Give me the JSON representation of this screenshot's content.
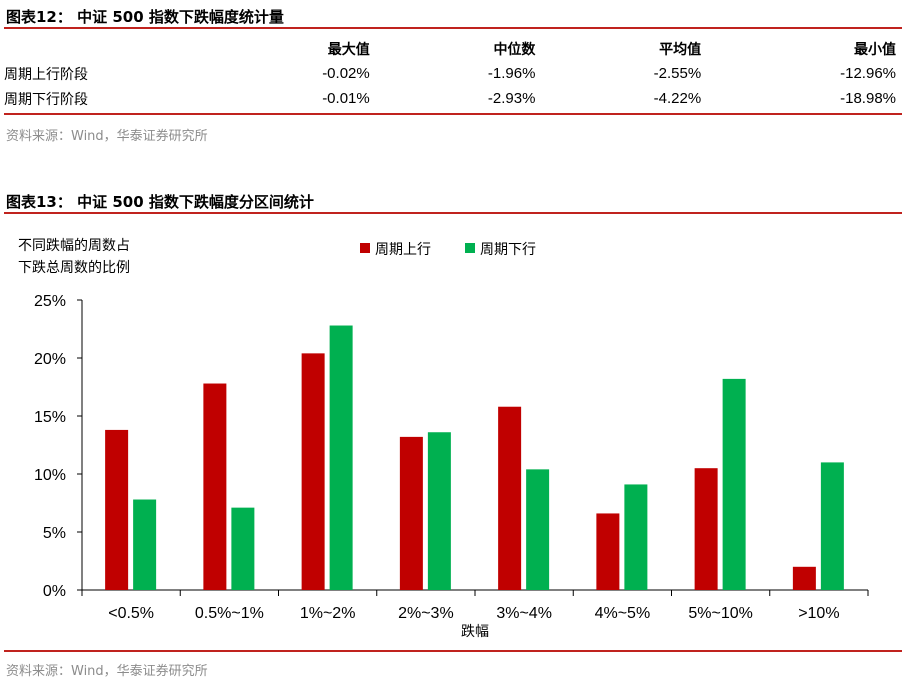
{
  "table12": {
    "title": "图表12：  中证 500 指数下跌幅度统计量",
    "headers": [
      "",
      "最大值",
      "中位数",
      "平均值",
      "最小值"
    ],
    "rows": [
      {
        "label": "周期上行阶段",
        "values": [
          "-0.02%",
          "-1.96%",
          "-2.55%",
          "-12.96%"
        ]
      },
      {
        "label": "周期下行阶段",
        "values": [
          "-0.01%",
          "-2.93%",
          "-4.22%",
          "-18.98%"
        ]
      }
    ],
    "source": "资料来源：Wind，华泰证券研究所"
  },
  "figure13": {
    "title": "图表13：  中证 500 指数下跌幅度分区间统计",
    "source": "资料来源：Wind，华泰证券研究所"
  },
  "chart_data": {
    "type": "bar",
    "title": "",
    "ylabel": "不同跌幅的周数占下跌总周数的比例",
    "ylabel_lines": [
      "不同跌幅的周数占",
      "下跌总周数的比例"
    ],
    "xlabel": "跌幅",
    "categories": [
      "<0.5%",
      "0.5%~1%",
      "1%~2%",
      "2%~3%",
      "3%~4%",
      "4%~5%",
      "5%~10%",
      ">10%"
    ],
    "series": [
      {
        "name": "周期上行",
        "color": "#c00000",
        "values": [
          13.8,
          17.8,
          20.4,
          13.2,
          15.8,
          6.6,
          10.5,
          2.0
        ]
      },
      {
        "name": "周期下行",
        "color": "#00b050",
        "values": [
          7.8,
          7.1,
          22.8,
          13.6,
          10.4,
          9.1,
          18.2,
          11.0
        ]
      }
    ],
    "ylim": [
      0,
      25
    ],
    "yticks": [
      "0%",
      "5%",
      "10%",
      "15%",
      "20%",
      "25%"
    ],
    "grid": false,
    "legend": "top-center"
  }
}
